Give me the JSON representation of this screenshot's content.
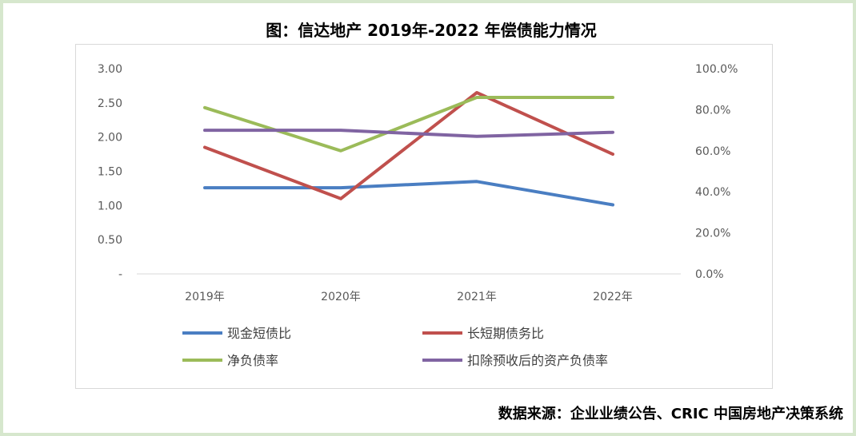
{
  "page": {
    "title": "图：信达地产 2019年-2022 年偿债能力情况",
    "source": "数据来源：企业业绩公告、CRIC 中国房地产决策系统",
    "frame_color": "#d6e7cd"
  },
  "chart_data": {
    "type": "line",
    "title": "图：信达地产 2019年-2022 年偿债能力情况",
    "categories": [
      "2019年",
      "2020年",
      "2021年",
      "2022年"
    ],
    "y_left": {
      "ylim": [
        0,
        3
      ],
      "ticks": [
        "3.00",
        "2.50",
        "2.00",
        "1.50",
        "1.00",
        "0.50",
        "-"
      ]
    },
    "y_right": {
      "ylim": [
        0,
        1.0
      ],
      "ticks": [
        "100.0%",
        "80.0%",
        "60.0%",
        "40.0%",
        "20.0%",
        "0.0%"
      ]
    },
    "grid": false,
    "legend_position": "bottom",
    "series": [
      {
        "name": "现金短债比",
        "axis": "left",
        "color": "#4a7ec2",
        "values": [
          1.26,
          1.26,
          1.35,
          1.01
        ]
      },
      {
        "name": "长短期债务比",
        "axis": "left",
        "color": "#c0504d",
        "values": [
          1.85,
          1.1,
          2.65,
          1.75
        ]
      },
      {
        "name": "净负债率",
        "axis": "right",
        "color": "#9bbb59",
        "values": [
          0.81,
          0.6,
          0.86,
          0.86
        ]
      },
      {
        "name": "扣除预收后的资产负债率",
        "axis": "right",
        "color": "#8064a2",
        "values": [
          0.7,
          0.7,
          0.67,
          0.69
        ]
      }
    ]
  }
}
